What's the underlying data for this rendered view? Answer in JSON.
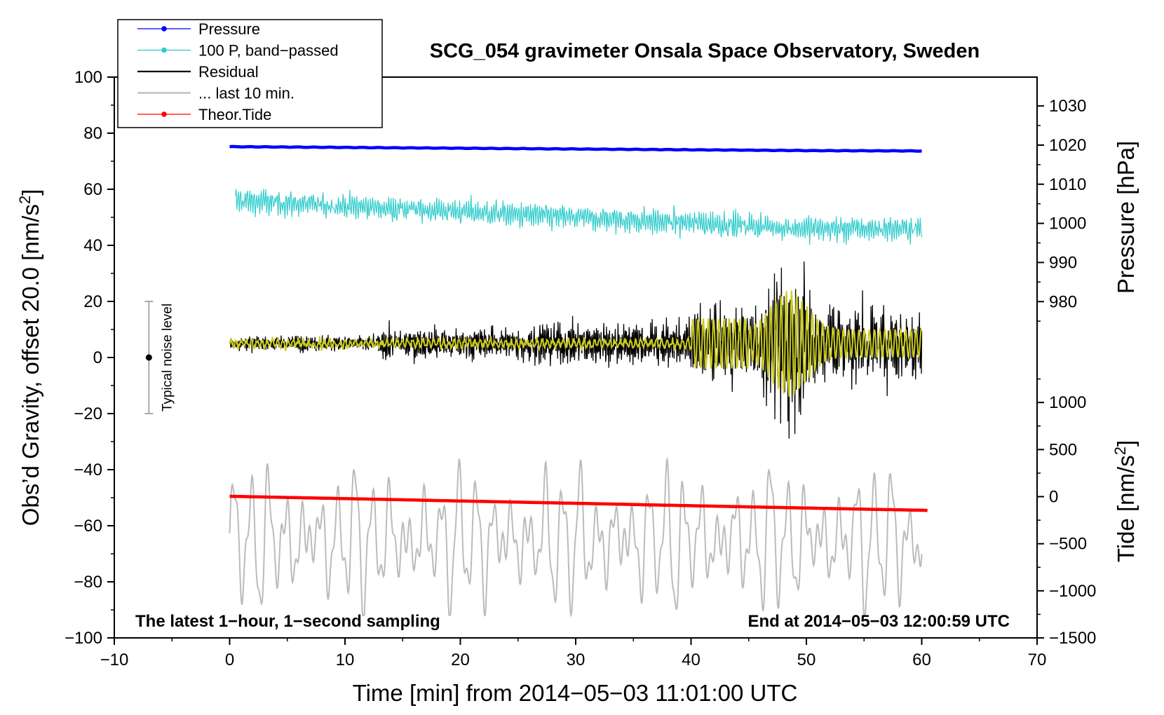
{
  "chart_data": {
    "type": "line",
    "title": "SCG_054 gravimeter Onsala Space Observatory, Sweden",
    "xlabel": "Time [min] from 2014−05−03 11:01:00 UTC",
    "ylabel": "Obs’d Gravity, offset 20.0 [nm/s",
    "ylabel_sup": "2",
    "ylabel_end": "]",
    "y2label_pressure": "Pressure [hPa]",
    "y2label_tide": "Tide [nm/s",
    "y2label_tide_sup": "2",
    "y2label_tide_end": "]",
    "xlim": [
      -10,
      70
    ],
    "ylim": [
      -100,
      100
    ],
    "pressure_lim": [
      977,
      1032
    ],
    "tide_lim": [
      -1500,
      1500
    ],
    "x_ticks": [
      -10,
      0,
      10,
      20,
      30,
      40,
      50,
      60,
      70
    ],
    "x_tick_labels": [
      "−10",
      "0",
      "10",
      "20",
      "30",
      "40",
      "50",
      "60",
      "70"
    ],
    "y_ticks": [
      100,
      80,
      60,
      40,
      20,
      0,
      -20,
      -40,
      -60,
      -80,
      -100
    ],
    "y_tick_labels": [
      "100",
      "80",
      "60",
      "40",
      "20",
      "0",
      "−20",
      "−40",
      "−60",
      "−80",
      "−100"
    ],
    "pressure_ticks": [
      1030,
      1020,
      1010,
      1000,
      990,
      980
    ],
    "pressure_tick_labels": [
      "1030",
      "1020",
      "1010",
      "1000",
      "990",
      "980"
    ],
    "tide_ticks": [
      1000,
      500,
      0,
      -500,
      -1000,
      -1500
    ],
    "tide_tick_labels": [
      "1000",
      "500",
      "0",
      "−500",
      "−1000",
      "−1500"
    ],
    "legend": [
      {
        "label": "Pressure",
        "color": "#0000ff",
        "marker": true
      },
      {
        "label": "100 P, band−passed",
        "color": "#33cccc",
        "marker": true
      },
      {
        "label": "Residual",
        "color": "#000000",
        "marker": false
      },
      {
        "label": "... last 10 min.",
        "color": "#bbbbbb",
        "marker": false
      },
      {
        "label": "Theor.Tide",
        "color": "#ff0000",
        "marker": true
      }
    ],
    "series": [
      {
        "name": "Pressure",
        "axis": "pressure",
        "color": "#0000ff",
        "x": [
          0,
          10,
          20,
          30,
          40,
          50,
          60
        ],
        "values": [
          1019.6,
          1019.4,
          1019.2,
          1019.0,
          1018.8,
          1018.6,
          1018.5
        ]
      },
      {
        "name": "100 P, band−passed",
        "axis": "gravity",
        "color": "#33cccc",
        "x": [
          0.5,
          10,
          20,
          30,
          40,
          50,
          60
        ],
        "values": [
          56,
          54,
          52,
          50,
          48,
          46,
          46
        ]
      },
      {
        "name": "Residual",
        "axis": "gravity",
        "color": "#000000",
        "x": [
          0,
          10,
          20,
          30,
          40,
          48.5,
          55,
          60
        ],
        "values": [
          5,
          5,
          5,
          5,
          5,
          5,
          5,
          5
        ]
      },
      {
        "name": "Residual (smoothed)",
        "axis": "gravity",
        "color": "#cccc22",
        "x": [
          0,
          10,
          20,
          30,
          40,
          48.5,
          55,
          60
        ],
        "values": [
          5,
          5,
          5,
          5,
          5,
          5,
          5,
          5
        ]
      },
      {
        "name": "... last 10 min.",
        "axis": "gravity",
        "color": "#bbbbbb",
        "x": [
          0,
          10,
          20,
          30,
          40,
          50,
          60
        ],
        "values": [
          -65,
          -65,
          -65,
          -65,
          -65,
          -65,
          -65
        ]
      },
      {
        "name": "Theor.Tide",
        "axis": "tide",
        "color": "#ff0000",
        "x": [
          0,
          10,
          20,
          30,
          40,
          50,
          60.5
        ],
        "values": [
          4,
          -21,
          -46,
          -71,
          -96,
          -121,
          -146
        ]
      }
    ],
    "noise_bar": {
      "x": -7,
      "center": 0,
      "low": -20,
      "high": 20,
      "label": "Typical noise level"
    },
    "annotations": {
      "left": "The latest 1−hour, 1−second sampling",
      "right": "End at 2014−05−03 12:00:59 UTC"
    }
  }
}
